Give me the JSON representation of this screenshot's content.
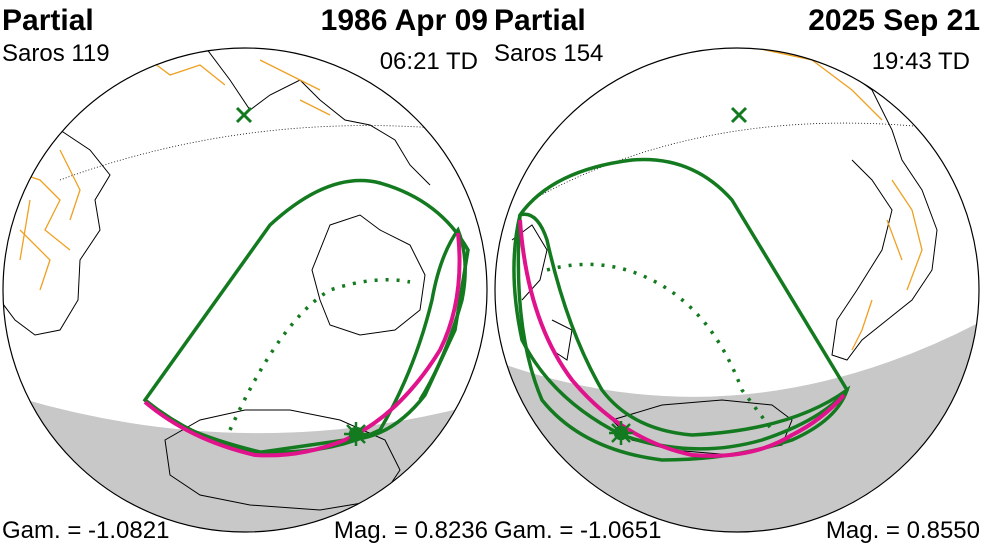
{
  "panels": [
    {
      "type_label": "Partial",
      "date": "1986 Apr 09",
      "saros": "Saros 119",
      "time": "06:21 TD",
      "gamma": "Gam. = -1.0821",
      "magnitude": "Mag. = 0.8236"
    },
    {
      "type_label": "Partial",
      "date": "2025 Sep 21",
      "saros": "Saros 154",
      "time": "19:43 TD",
      "gamma": "Gam. = -1.0651",
      "magnitude": "Mag. = 0.8550"
    }
  ],
  "colors": {
    "penumbra_limit": "#137a1f",
    "max_eclipse_line": "#e0138c",
    "borders": "#f0a020",
    "night_shade": "#c8c8c8",
    "coastline": "#000000"
  },
  "icons": [
    "subsolar-point-x-icon",
    "greatest-eclipse-star-icon"
  ]
}
